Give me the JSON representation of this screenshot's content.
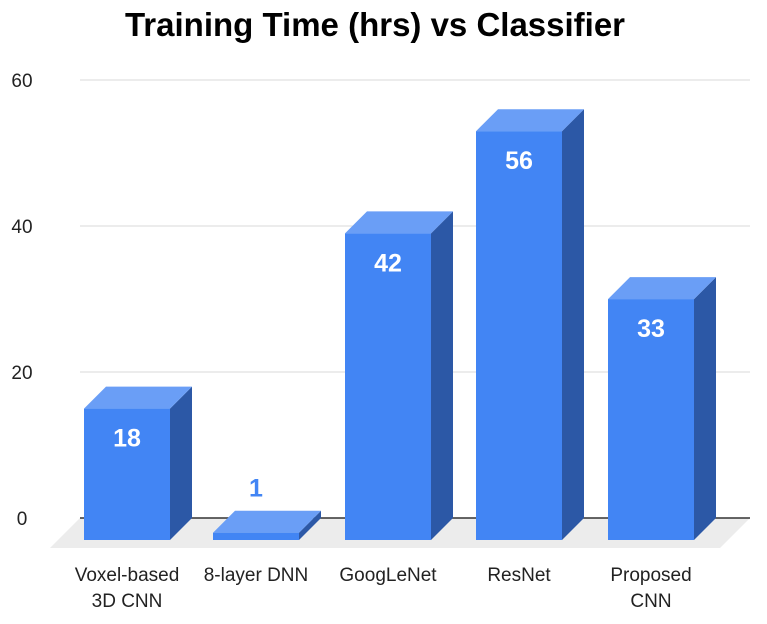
{
  "chart_data": {
    "type": "bar",
    "title": "Training Time (hrs) vs Classifier",
    "xlabel": "",
    "ylabel": "",
    "categories": [
      [
        "Voxel-based",
        "3D CNN"
      ],
      [
        "8-layer DNN"
      ],
      [
        "GoogLeNet"
      ],
      [
        "ResNet"
      ],
      [
        "Proposed",
        "CNN"
      ]
    ],
    "values": [
      18,
      1,
      42,
      56,
      33
    ],
    "value_labels": [
      "18",
      "1",
      "42",
      "56",
      "33"
    ],
    "ylim": [
      0,
      60
    ],
    "yticks": [
      "0",
      "20",
      "40",
      "60"
    ],
    "grid": true,
    "legend": "none",
    "style": "3d-column",
    "colors": {
      "bar_front": "#4285F4",
      "bar_top": "#6A9EF6",
      "bar_side": "#2C58A6",
      "floor": "#ECECEC",
      "grid": "#D9D9D9",
      "label_inside": "#FFFFFF",
      "label_outside": "#4285F4"
    }
  }
}
